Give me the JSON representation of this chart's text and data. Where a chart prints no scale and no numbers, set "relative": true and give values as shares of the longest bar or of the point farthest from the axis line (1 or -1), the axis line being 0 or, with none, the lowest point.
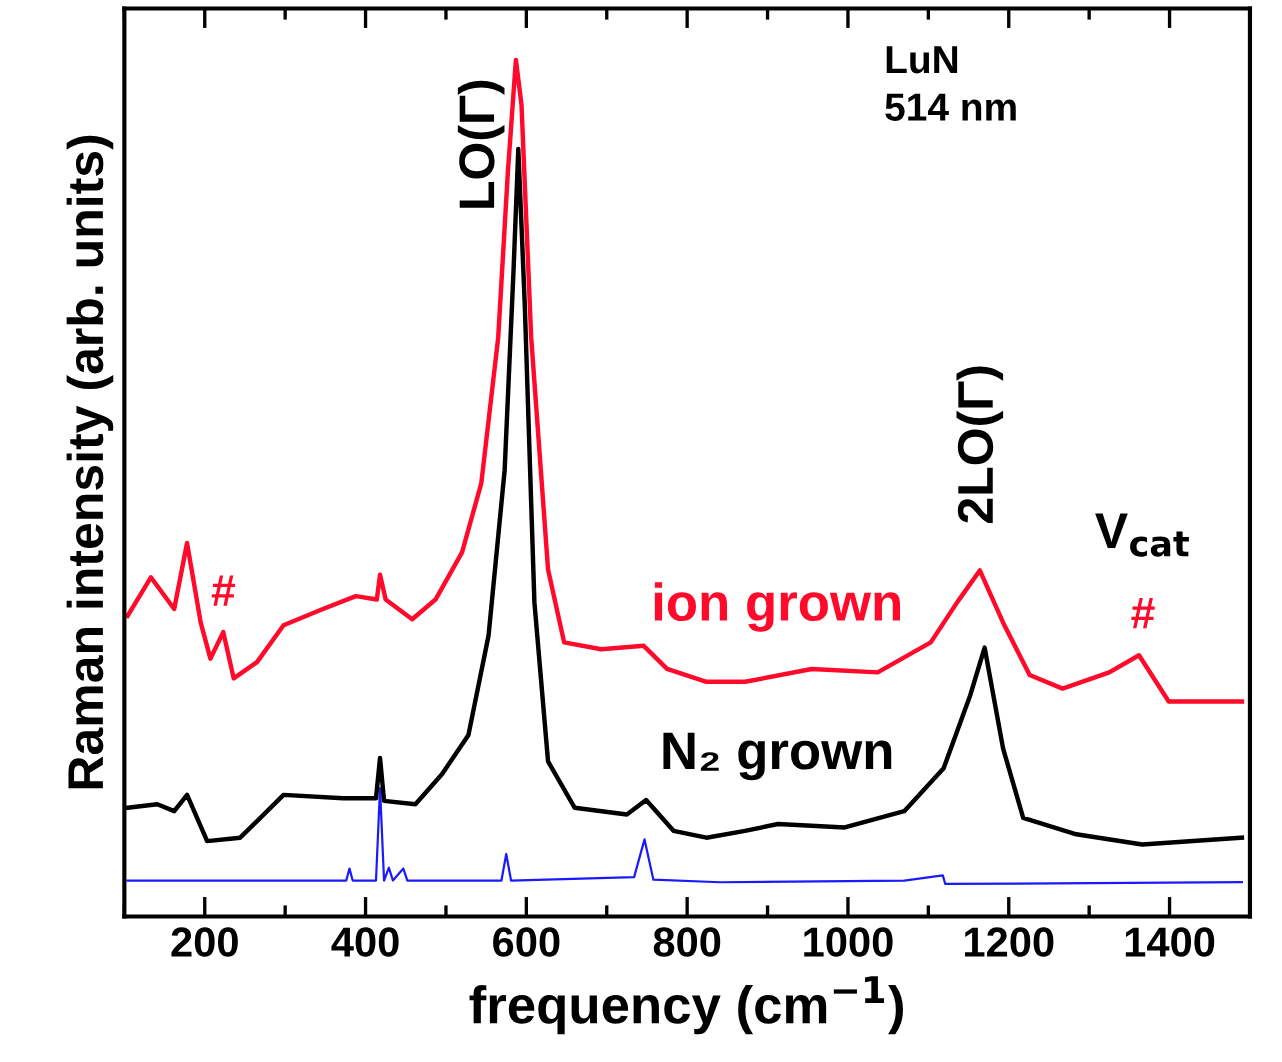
{
  "chart_data": {
    "type": "line",
    "relative": true,
    "xlabel": "frequency (cm$^{−1}$)",
    "ylabel": "Raman intensity (arb. units)",
    "xlim": [
      100,
      1500
    ],
    "xticks": [
      200,
      400,
      600,
      800,
      1000,
      1200,
      1400
    ],
    "grid": false,
    "marker": "none",
    "line_style": "solid",
    "series": [
      {
        "name": "ion grown",
        "color": "#ff0a2a",
        "x": [
          104,
          133,
          162,
          178,
          195,
          207,
          223,
          236,
          265,
          298,
          347,
          388,
          414,
          418,
          425,
          458,
          487,
          520,
          544,
          565,
          577,
          587,
          594,
          606,
          627,
          647,
          693,
          746,
          775,
          824,
          872,
          955,
          1037,
          1103,
          1136,
          1164,
          1193,
          1226,
          1267,
          1325,
          1362,
          1399,
          1490
        ],
        "values": [
          0.351,
          0.396,
          0.359,
          0.436,
          0.343,
          0.301,
          0.332,
          0.278,
          0.297,
          0.34,
          0.359,
          0.374,
          0.37,
          0.399,
          0.37,
          0.347,
          0.37,
          0.425,
          0.506,
          0.676,
          0.869,
          1,
          0.947,
          0.676,
          0.405,
          0.32,
          0.312,
          0.316,
          0.289,
          0.274,
          0.274,
          0.289,
          0.285,
          0.32,
          0.367,
          0.404,
          0.343,
          0.282,
          0.266,
          0.285,
          0.305,
          0.251,
          0.251
        ]
      },
      {
        "name": "N₂ grown",
        "color": "#000000",
        "x": [
          104,
          141,
          162,
          178,
          203,
          244,
          298,
          372,
          413,
          418,
          423,
          462,
          495,
          528,
          553,
          573,
          584,
          590,
          598,
          610,
          627,
          660,
          725,
          749,
          783,
          824,
          872,
          913,
          996,
          1070,
          1119,
          1152,
          1170,
          1193,
          1218,
          1284,
          1366,
          1490
        ],
        "values": [
          0.127,
          0.131,
          0.123,
          0.142,
          0.088,
          0.092,
          0.142,
          0.138,
          0.138,
          0.185,
          0.135,
          0.131,
          0.166,
          0.212,
          0.328,
          0.521,
          0.753,
          0.896,
          0.715,
          0.367,
          0.181,
          0.127,
          0.119,
          0.136,
          0.1,
          0.092,
          0.1,
          0.108,
          0.104,
          0.123,
          0.173,
          0.258,
          0.314,
          0.196,
          0.115,
          0.096,
          0.084,
          0.092
        ]
      },
      {
        "color": "#1a1aff",
        "x": [
          104,
          376,
          380,
          384,
          413,
          418,
          423,
          429,
          434,
          447,
          452,
          569,
          575,
          581,
          734,
          747,
          758,
          841,
          1070,
          1118,
          1121,
          1490
        ],
        "values": [
          0.042,
          0.042,
          0.056,
          0.042,
          0.042,
          0.15,
          0.042,
          0.057,
          0.042,
          0.056,
          0.042,
          0.042,
          0.073,
          0.042,
          0.046,
          0.09,
          0.043,
          0.04,
          0.042,
          0.048,
          0.038,
          0.04
        ]
      }
    ],
    "annotations": [
      "LO(Γ)",
      "2LO(Γ)",
      "V$_{cat}$",
      "#",
      "#",
      "LuN\n514 nm"
    ]
  }
}
